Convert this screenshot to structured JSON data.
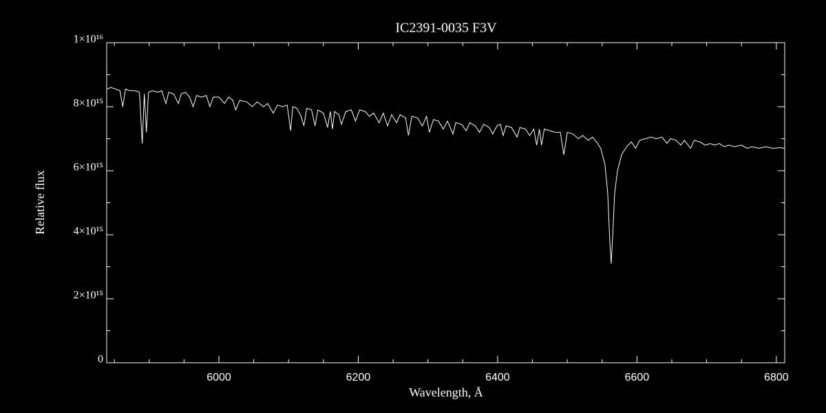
{
  "chart_data": {
    "type": "line",
    "title": "IC2391-0035  F3V",
    "xlabel": "Wavelength, Å",
    "ylabel": "Relative flux",
    "color": "#ffffff",
    "xlim": [
      5839,
      6812
    ],
    "ylim": [
      0,
      1e+16
    ],
    "xticks": [
      6000,
      6200,
      6400,
      6600,
      6800
    ],
    "xminorticks": [
      5850,
      5900,
      5950,
      6050,
      6100,
      6150,
      6250,
      6300,
      6350,
      6450,
      6500,
      6550,
      6650,
      6700,
      6750
    ],
    "yticks": [
      0,
      {
        "value": 2000000000000000.0,
        "label": "2×10¹⁵"
      },
      {
        "value": 4000000000000000.0,
        "label": "4×10¹⁵"
      },
      {
        "value": 6000000000000000.0,
        "label": "6×10¹⁵"
      },
      {
        "value": 8000000000000000.0,
        "label": "8×10¹⁵"
      },
      {
        "value": 1e+16,
        "label": "1×10¹⁶"
      }
    ],
    "yminorticks": [
      1000000000000000.0,
      3000000000000000.0,
      5000000000000000.0,
      7000000000000000.0,
      9000000000000000.0
    ],
    "x": [
      5839,
      5845,
      5852,
      5858,
      5862,
      5866,
      5872,
      5880,
      5886,
      5890,
      5893,
      5896,
      5899,
      5905,
      5912,
      5918,
      5924,
      5928,
      5935,
      5942,
      5946,
      5952,
      5958,
      5963,
      5968,
      5975,
      5982,
      5987,
      5992,
      6000,
      6008,
      6014,
      6020,
      6024,
      6030,
      6040,
      6048,
      6055,
      6064,
      6070,
      6078,
      6084,
      6092,
      6098,
      6103,
      6106,
      6112,
      6118,
      6122,
      6126,
      6133,
      6138,
      6142,
      6150,
      6156,
      6160,
      6163,
      6166,
      6172,
      6176,
      6182,
      6190,
      6196,
      6202,
      6210,
      6216,
      6222,
      6230,
      6236,
      6242,
      6248,
      6255,
      6260,
      6268,
      6272,
      6277,
      6285,
      6292,
      6298,
      6302,
      6308,
      6315,
      6322,
      6328,
      6336,
      6340,
      6348,
      6355,
      6360,
      6368,
      6374,
      6380,
      6388,
      6393,
      6399,
      6404,
      6408,
      6412,
      6420,
      6428,
      6432,
      6440,
      6446,
      6452,
      6456,
      6460,
      6463,
      6467,
      6475,
      6482,
      6490,
      6495,
      6500,
      6508,
      6516,
      6522,
      6530,
      6536,
      6542,
      6548,
      6554,
      6558,
      6561,
      6563,
      6565,
      6568,
      6572,
      6578,
      6585,
      6592,
      6598,
      6604,
      6612,
      6620,
      6628,
      6636,
      6643,
      6648,
      6656,
      6663,
      6668,
      6677,
      6682,
      6690,
      6698,
      6705,
      6712,
      6718,
      6725,
      6732,
      6740,
      6750,
      6758,
      6765,
      6775,
      6785,
      6795,
      6805,
      6812
    ],
    "values": [
      8550000000000000.0,
      8600000000000000.0,
      8550000000000000.0,
      8500000000000000.0,
      8000000000000000.0,
      8550000000000000.0,
      8500000000000000.0,
      8500000000000000.0,
      8450000000000000.0,
      6850000000000000.0,
      8400000000000000.0,
      7200000000000000.0,
      8450000000000000.0,
      8500000000000000.0,
      8450000000000000.0,
      8500000000000000.0,
      8100000000000000.0,
      8450000000000000.0,
      8400000000000000.0,
      8100000000000000.0,
      8400000000000000.0,
      8450000000000000.0,
      8300000000000000.0,
      8000000000000000.0,
      8350000000000000.0,
      8300000000000000.0,
      8350000000000000.0,
      8000000000000000.0,
      8300000000000000.0,
      8300000000000000.0,
      8100000000000000.0,
      8300000000000000.0,
      8200000000000000.0,
      7900000000000000.0,
      8200000000000000.0,
      8150000000000000.0,
      8000000000000000.0,
      8150000000000000.0,
      8000000000000000.0,
      8100000000000000.0,
      7800000000000000.0,
      8050000000000000.0,
      8000000000000000.0,
      8050000000000000.0,
      7250000000000000.0,
      8000000000000000.0,
      7950000000000000.0,
      7700000000000000.0,
      7400000000000000.0,
      7950000000000000.0,
      7900000000000000.0,
      7400000000000000.0,
      7900000000000000.0,
      7800000000000000.0,
      7350000000000000.0,
      7850000000000000.0,
      7300000000000000.0,
      7850000000000000.0,
      7750000000000000.0,
      7450000000000000.0,
      7850000000000000.0,
      7900000000000000.0,
      7550000000000000.0,
      7900000000000000.0,
      7850000000000000.0,
      7700000000000000.0,
      7800000000000000.0,
      7500000000000000.0,
      7800000000000000.0,
      7400000000000000.0,
      7750000000000000.0,
      7500000000000000.0,
      7750000000000000.0,
      7650000000000000.0,
      7100000000000000.0,
      7700000000000000.0,
      7650000000000000.0,
      7400000000000000.0,
      7700000000000000.0,
      7200000000000000.0,
      7600000000000000.0,
      7550000000000000.0,
      7300000000000000.0,
      7550000000000000.0,
      7150000000000000.0,
      7500000000000000.0,
      7450000000000000.0,
      7250000000000000.0,
      7500000000000000.0,
      7400000000000000.0,
      7200000000000000.0,
      7450000000000000.0,
      7350000000000000.0,
      7150000000000000.0,
      7400000000000000.0,
      7450000000000000.0,
      7100000000000000.0,
      7400000000000000.0,
      7350000000000000.0,
      7050000000000000.0,
      7350000000000000.0,
      7300000000000000.0,
      7100000000000000.0,
      7300000000000000.0,
      6800000000000000.0,
      7300000000000000.0,
      6800000000000000.0,
      7300000000000000.0,
      7250000000000000.0,
      7200000000000000.0,
      7200000000000000.0,
      6500000000000000.0,
      7200000000000000.0,
      7150000000000000.0,
      7000000000000000.0,
      7100000000000000.0,
      6950000000000000.0,
      7050000000000000.0,
      6900000000000000.0,
      6700000000000000.0,
      6200000000000000.0,
      5300000000000000.0,
      3800000000000000.0,
      3100000000000000.0,
      3900000000000000.0,
      5300000000000000.0,
      6000000000000000.0,
      6500000000000000.0,
      6750000000000000.0,
      6900000000000000.0,
      6700000000000000.0,
      6950000000000000.0,
      7000000000000000.0,
      7050000000000000.0,
      7000000000000000.0,
      7050000000000000.0,
      6850000000000000.0,
      7000000000000000.0,
      6950000000000000.0,
      6800000000000000.0,
      6950000000000000.0,
      6700000000000000.0,
      6950000000000000.0,
      6900000000000000.0,
      6800000000000000.0,
      6850000000000000.0,
      6800000000000000.0,
      6850000000000000.0,
      6750000000000000.0,
      6800000000000000.0,
      6750000000000000.0,
      6800000000000000.0,
      6700000000000000.0,
      6750000000000000.0,
      6700000000000000.0,
      6750000000000000.0,
      6700000000000000.0,
      6720000000000000.0,
      6700000000000000.0
    ]
  }
}
